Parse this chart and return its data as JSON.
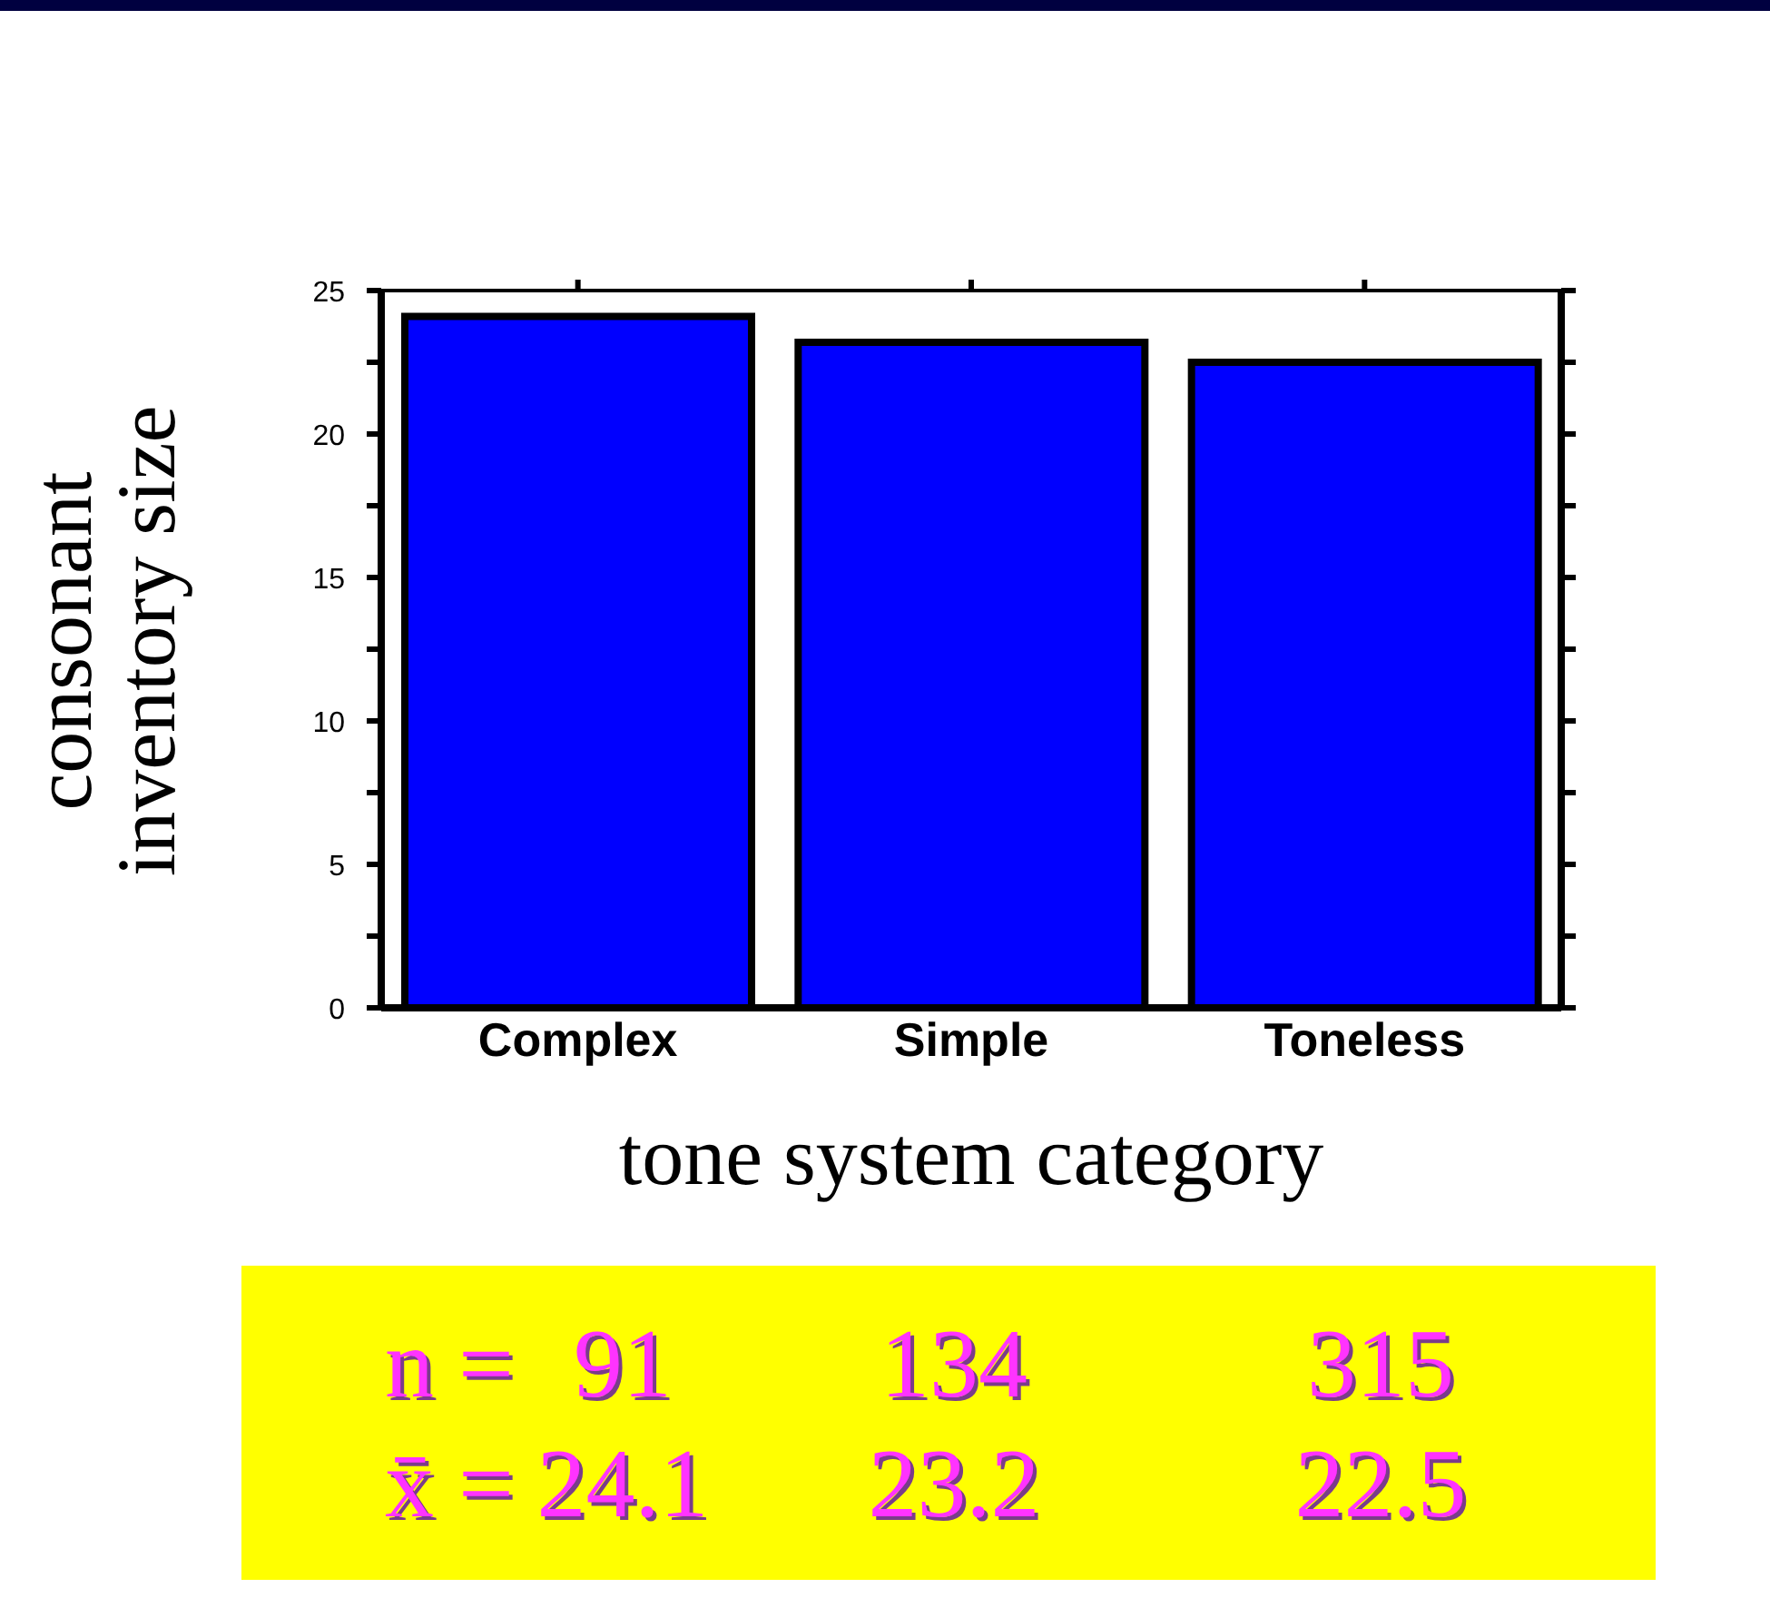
{
  "chart_data": {
    "type": "bar",
    "xlabel": "tone system category",
    "ylabel": "consonant\ninventory size",
    "categories": [
      "Complex",
      "Simple",
      "Toneless"
    ],
    "values": [
      24.1,
      23.2,
      22.5
    ],
    "color": "#0000ff",
    "ylim": [
      0,
      25
    ],
    "yticks": [
      0,
      {
        "value": 2.5,
        "label": null
      },
      5,
      {
        "value": 7.5,
        "label": null
      },
      10,
      {
        "value": 12.5,
        "label": null
      },
      15,
      {
        "value": 17.5,
        "label": null
      },
      20,
      {
        "value": 22.5,
        "label": null
      },
      25
    ],
    "data_labels": true,
    "annotations": [
      "n =",
      "91",
      "134",
      "315",
      "x̄ ="
    ]
  }
}
